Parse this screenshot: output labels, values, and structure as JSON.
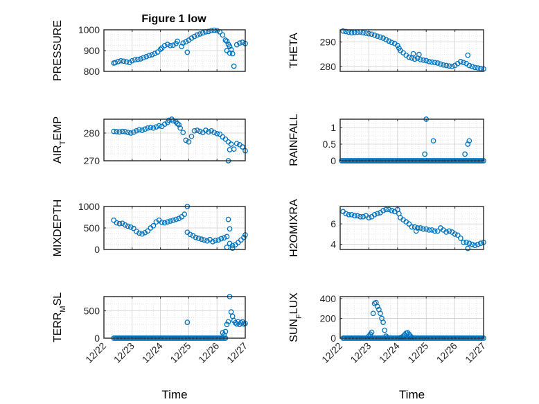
{
  "figure": {
    "title": "Figure 1 low",
    "marker_color": "#0072BD",
    "axis_color": "#262626",
    "grid_color": "#dadada"
  },
  "chart_data": [
    {
      "type": "scatter",
      "ylabel": "PRESSURE",
      "xlim": [
        0,
        5
      ],
      "ylim": [
        800,
        1000
      ],
      "yticks": [
        800,
        900,
        1000
      ],
      "xticks": [
        "12/22",
        "12/23",
        "12/24",
        "12/25",
        "12/26",
        "12/27"
      ],
      "xlabel": "",
      "x": [
        0.35,
        0.4,
        0.5,
        0.6,
        0.7,
        0.8,
        0.9,
        1.0,
        1.1,
        1.2,
        1.3,
        1.4,
        1.5,
        1.6,
        1.7,
        1.8,
        1.9,
        2.0,
        2.05,
        2.15,
        2.25,
        2.35,
        2.45,
        2.55,
        2.6,
        2.75,
        2.8,
        2.9,
        3.0,
        3.1,
        3.2,
        3.3,
        3.4,
        3.5,
        3.6,
        3.7,
        3.8,
        3.9,
        4.0,
        4.1,
        4.2,
        4.3,
        4.35,
        4.4,
        4.45,
        4.5,
        4.55,
        4.6,
        4.7,
        4.8,
        4.9,
        5.0
      ],
      "y": [
        840,
        842,
        847,
        851,
        849,
        846,
        843,
        851,
        856,
        858,
        860,
        866,
        871,
        876,
        880,
        886,
        893,
        906,
        912,
        924,
        930,
        924,
        926,
        934,
        945,
        920,
        936,
        942,
        950,
        960,
        968,
        975,
        980,
        985,
        990,
        992,
        996,
        998,
        996,
        990,
        975,
        950,
        945,
        930,
        920,
        905,
        885,
        825,
        928,
        936,
        940,
        934
      ],
      "outliers": {
        "x": [
          2.95,
          4.35,
          4.45
        ],
        "y": [
          892,
          900,
          888
        ]
      }
    },
    {
      "type": "scatter",
      "ylabel": "THETA",
      "xlim": [
        0,
        5
      ],
      "ylim": [
        278,
        295
      ],
      "yticks": [
        280,
        290
      ],
      "xticks": [
        "12/22",
        "12/23",
        "12/24",
        "12/25",
        "12/26",
        "12/27"
      ],
      "xlabel": "",
      "x": [
        0.1,
        0.2,
        0.3,
        0.4,
        0.5,
        0.6,
        0.7,
        0.8,
        0.9,
        1.0,
        1.1,
        1.2,
        1.3,
        1.4,
        1.5,
        1.6,
        1.7,
        1.8,
        1.9,
        2.0,
        2.05,
        2.1,
        2.2,
        2.3,
        2.4,
        2.5,
        2.6,
        2.7,
        2.8,
        2.9,
        3.0,
        3.1,
        3.2,
        3.3,
        3.4,
        3.5,
        3.6,
        3.7,
        3.8,
        3.9,
        4.0,
        4.1,
        4.2,
        4.3,
        4.4,
        4.5,
        4.6,
        4.7,
        4.8,
        4.9,
        5.0
      ],
      "y": [
        294.5,
        294.3,
        294.0,
        293.8,
        293.9,
        294.0,
        294.1,
        293.8,
        293.6,
        293.4,
        293.2,
        292.8,
        292.4,
        292.0,
        291.6,
        291.0,
        290.4,
        289.8,
        289.4,
        288.6,
        287.5,
        286.5,
        285.6,
        284.6,
        283.8,
        283.4,
        283.0,
        283.4,
        282.8,
        282.6,
        282.4,
        282.0,
        281.8,
        281.6,
        281.4,
        281.0,
        280.6,
        280.4,
        280.2,
        280.0,
        280.4,
        281.2,
        282.0,
        281.6,
        281.2,
        280.4,
        280.0,
        279.6,
        279.4,
        279.2,
        279.0
      ],
      "outliers": {
        "x": [
          2.55,
          2.75,
          4.45
        ],
        "y": [
          285.2,
          284.9,
          284.6
        ]
      }
    },
    {
      "type": "scatter",
      "ylabel": "AIR_TEMP",
      "xlim": [
        0,
        5
      ],
      "ylim": [
        270,
        285
      ],
      "yticks": [
        270,
        280
      ],
      "xticks": [
        "12/22",
        "12/23",
        "12/24",
        "12/25",
        "12/26",
        "12/27"
      ],
      "xlabel": "",
      "x": [
        0.35,
        0.45,
        0.55,
        0.65,
        0.75,
        0.85,
        0.95,
        1.05,
        1.15,
        1.25,
        1.35,
        1.45,
        1.55,
        1.65,
        1.75,
        1.85,
        1.95,
        2.05,
        2.15,
        2.25,
        2.3,
        2.4,
        2.45,
        2.55,
        2.6,
        2.65,
        2.7,
        2.8,
        2.9,
        3.0,
        3.1,
        3.2,
        3.3,
        3.4,
        3.5,
        3.6,
        3.7,
        3.8,
        3.9,
        4.0,
        4.1,
        4.2,
        4.3,
        4.4,
        4.5,
        4.6,
        4.7,
        4.8,
        4.9,
        5.0
      ],
      "y": [
        280.6,
        280.5,
        280.4,
        280.6,
        280.5,
        280.2,
        280.0,
        280.3,
        280.8,
        281.2,
        281.0,
        281.4,
        281.8,
        282.0,
        281.8,
        282.2,
        282.6,
        282.4,
        283.2,
        283.8,
        284.6,
        285.0,
        284.4,
        284.0,
        283.4,
        283.0,
        281.8,
        280.2,
        277.4,
        276.8,
        278.8,
        280.8,
        281.0,
        280.6,
        280.2,
        281.0,
        280.4,
        280.8,
        280.2,
        279.8,
        279.6,
        278.6,
        277.8,
        276.8,
        276.0,
        274.2,
        276.2,
        275.8,
        275.0,
        273.6
      ],
      "outliers": {
        "x": [
          4.4,
          4.45
        ],
        "y": [
          270,
          274
        ]
      }
    },
    {
      "type": "scatter",
      "ylabel": "RAINFALL",
      "xlim": [
        0,
        5
      ],
      "ylim": [
        0,
        1.25
      ],
      "yticks": [
        0,
        0.5,
        1
      ],
      "xticks": [
        "12/22",
        "12/23",
        "12/24",
        "12/25",
        "12/26",
        "12/27"
      ],
      "xlabel": "",
      "baseline": {
        "from": 0.05,
        "to": 5.0,
        "step": 0.05,
        "value": 0
      },
      "x": [
        2.95,
        3.0,
        3.25,
        4.35,
        4.45,
        4.5
      ],
      "y": [
        0.2,
        1.27,
        0.6,
        0.2,
        0.5,
        0.6
      ]
    },
    {
      "type": "scatter",
      "ylabel": "MIXDEPTH",
      "xlim": [
        0,
        5
      ],
      "ylim": [
        0,
        1000
      ],
      "yticks": [
        0,
        500,
        1000
      ],
      "xticks": [
        "12/22",
        "12/23",
        "12/24",
        "12/25",
        "12/26",
        "12/27"
      ],
      "xlabel": "",
      "x": [
        0.35,
        0.45,
        0.55,
        0.65,
        0.75,
        0.85,
        0.95,
        1.05,
        1.15,
        1.25,
        1.35,
        1.45,
        1.55,
        1.65,
        1.75,
        1.85,
        1.95,
        2.05,
        2.15,
        2.25,
        2.35,
        2.45,
        2.55,
        2.65,
        2.75,
        2.85,
        2.95,
        3.05,
        3.15,
        3.25,
        3.35,
        3.45,
        3.55,
        3.65,
        3.75,
        3.85,
        3.95,
        4.05,
        4.15,
        4.25,
        4.35,
        4.45,
        4.55,
        4.65,
        4.75,
        4.85,
        4.95,
        5.0
      ],
      "y": [
        680,
        620,
        600,
        610,
        570,
        540,
        520,
        490,
        420,
        380,
        360,
        390,
        430,
        500,
        550,
        640,
        680,
        630,
        620,
        640,
        660,
        680,
        700,
        720,
        760,
        820,
        400,
        350,
        320,
        280,
        260,
        240,
        220,
        200,
        230,
        180,
        210,
        220,
        250,
        270,
        300,
        140,
        90,
        110,
        160,
        220,
        280,
        340
      ],
      "outliers": {
        "x": [
          2.95,
          4.4,
          4.45,
          4.35,
          4.55
        ],
        "y": [
          1010,
          700,
          480,
          50,
          30
        ]
      }
    },
    {
      "type": "scatter",
      "ylabel": "H2OMIXRA",
      "xlim": [
        0,
        5
      ],
      "ylim": [
        3.5,
        7.7
      ],
      "yticks": [
        4,
        6
      ],
      "xticks": [
        "12/22",
        "12/23",
        "12/24",
        "12/25",
        "12/26",
        "12/27"
      ],
      "xlabel": "",
      "x": [
        0.1,
        0.2,
        0.3,
        0.4,
        0.5,
        0.6,
        0.7,
        0.8,
        0.9,
        1.0,
        1.1,
        1.2,
        1.3,
        1.4,
        1.5,
        1.6,
        1.7,
        1.8,
        1.9,
        2.0,
        2.05,
        2.1,
        2.2,
        2.3,
        2.4,
        2.5,
        2.6,
        2.7,
        2.8,
        2.9,
        3.0,
        3.1,
        3.2,
        3.3,
        3.4,
        3.5,
        3.6,
        3.7,
        3.8,
        3.9,
        4.0,
        4.1,
        4.2,
        4.3,
        4.4,
        4.5,
        4.6,
        4.7,
        4.8,
        4.9,
        5.0
      ],
      "y": [
        7.2,
        7.0,
        6.9,
        6.9,
        6.8,
        6.8,
        6.7,
        6.7,
        6.8,
        6.6,
        6.7,
        6.9,
        7.0,
        7.1,
        7.3,
        7.4,
        7.4,
        7.3,
        7.2,
        7.4,
        7.0,
        6.6,
        6.4,
        6.2,
        6.0,
        5.7,
        5.7,
        5.6,
        5.6,
        5.5,
        5.5,
        5.4,
        5.4,
        5.3,
        5.3,
        5.6,
        5.4,
        5.2,
        5.3,
        5.2,
        5.0,
        4.9,
        4.6,
        4.2,
        4.2,
        4.1,
        4.0,
        3.9,
        4.0,
        4.1,
        4.2
      ],
      "outliers": {
        "x": [
          2.65,
          4.45
        ],
        "y": [
          5.3,
          3.6
        ]
      }
    },
    {
      "type": "scatter",
      "ylabel": "TERR_MSL",
      "xlim": [
        0,
        5
      ],
      "ylim": [
        0,
        760
      ],
      "yticks": [
        0,
        500
      ],
      "xticks": [
        "12/22",
        "12/23",
        "12/24",
        "12/25",
        "12/26",
        "12/27"
      ],
      "xlabel": "Time",
      "baseline": {
        "from": 0.35,
        "to": 4.3,
        "step": 0.05,
        "value": 0
      },
      "x": [
        2.95,
        4.2,
        4.25,
        4.3,
        4.35,
        4.4,
        4.45,
        4.5,
        4.55,
        4.6,
        4.65,
        4.7,
        4.75,
        4.8,
        4.85,
        4.9,
        4.95,
        5.0
      ],
      "y": [
        290,
        100,
        60,
        120,
        250,
        300,
        760,
        480,
        400,
        320,
        280,
        260,
        300,
        250,
        280,
        300,
        260,
        270
      ]
    },
    {
      "type": "scatter",
      "ylabel": "SUN_FLUX",
      "xlim": [
        0,
        5
      ],
      "ylim": [
        0,
        420
      ],
      "yticks": [
        0,
        200,
        400
      ],
      "xticks": [
        "12/22",
        "12/23",
        "12/24",
        "12/25",
        "12/26",
        "12/27"
      ],
      "xlabel": "Time",
      "baseline": {
        "from": 0.1,
        "to": 5.0,
        "step": 0.05,
        "value": 0
      },
      "x": [
        1.0,
        1.05,
        1.1,
        1.15,
        1.2,
        1.25,
        1.3,
        1.35,
        1.4,
        1.45,
        1.5,
        1.55,
        1.6,
        1.65,
        2.1,
        2.15,
        2.2,
        2.25,
        2.3,
        2.35,
        2.4,
        2.45,
        2.5
      ],
      "y": [
        20,
        40,
        60,
        250,
        350,
        360,
        320,
        290,
        250,
        200,
        160,
        80,
        20,
        5,
        5,
        10,
        20,
        35,
        50,
        55,
        40,
        20,
        8
      ]
    }
  ]
}
